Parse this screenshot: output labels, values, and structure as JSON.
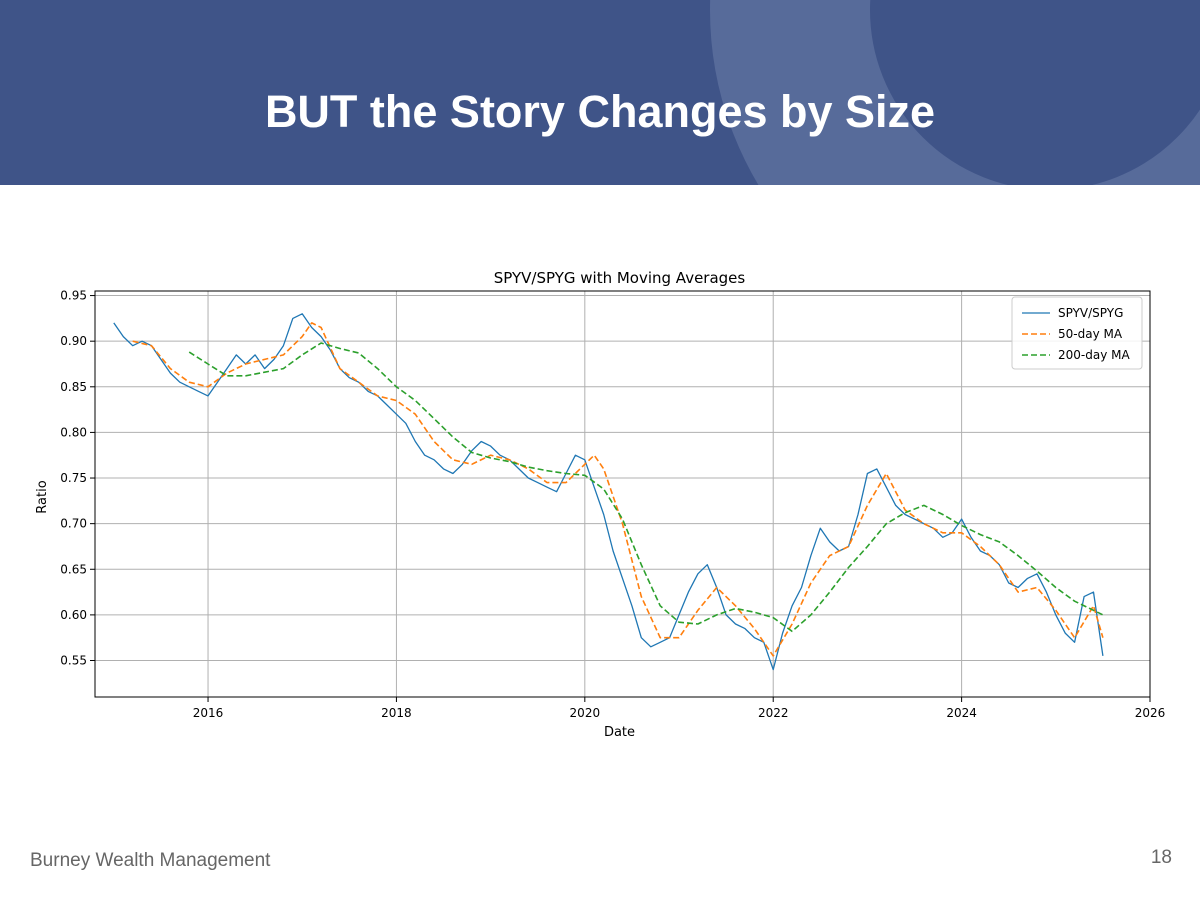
{
  "slide": {
    "title": "BUT the Story Changes by Size",
    "footer_left": "Burney Wealth Management",
    "page_number": "18",
    "header_color": "#3f5488"
  },
  "chart_data": {
    "type": "line",
    "title": "SPYV/SPYG with Moving Averages",
    "xlabel": "Date",
    "ylabel": "Ratio",
    "xlim": [
      2014.8,
      2026.0
    ],
    "ylim": [
      0.51,
      0.955
    ],
    "x_ticks": [
      2016,
      2018,
      2020,
      2022,
      2024,
      2026
    ],
    "x_tick_labels": [
      "2016",
      "2018",
      "2020",
      "2022",
      "2024",
      "2026"
    ],
    "y_ticks": [
      0.55,
      0.6,
      0.65,
      0.7,
      0.75,
      0.8,
      0.85,
      0.9,
      0.95
    ],
    "y_tick_labels": [
      "0.55",
      "0.60",
      "0.65",
      "0.70",
      "0.75",
      "0.80",
      "0.85",
      "0.90",
      "0.95"
    ],
    "grid": true,
    "legend_position": "top-right",
    "series": [
      {
        "name": "SPYV/SPYG",
        "color": "#1f77b4",
        "style": "solid",
        "x": [
          2015.0,
          2015.1,
          2015.2,
          2015.3,
          2015.4,
          2015.5,
          2015.6,
          2015.7,
          2015.8,
          2015.9,
          2016.0,
          2016.1,
          2016.2,
          2016.3,
          2016.4,
          2016.5,
          2016.6,
          2016.7,
          2016.8,
          2016.9,
          2017.0,
          2017.1,
          2017.2,
          2017.3,
          2017.4,
          2017.5,
          2017.6,
          2017.7,
          2017.8,
          2017.9,
          2018.0,
          2018.1,
          2018.2,
          2018.3,
          2018.4,
          2018.5,
          2018.6,
          2018.7,
          2018.8,
          2018.9,
          2019.0,
          2019.1,
          2019.2,
          2019.3,
          2019.4,
          2019.5,
          2019.6,
          2019.7,
          2019.8,
          2019.9,
          2020.0,
          2020.1,
          2020.2,
          2020.3,
          2020.4,
          2020.5,
          2020.6,
          2020.7,
          2020.8,
          2020.9,
          2021.0,
          2021.1,
          2021.2,
          2021.3,
          2021.4,
          2021.5,
          2021.6,
          2021.7,
          2021.8,
          2021.9,
          2022.0,
          2022.1,
          2022.2,
          2022.3,
          2022.4,
          2022.5,
          2022.6,
          2022.7,
          2022.8,
          2022.9,
          2023.0,
          2023.1,
          2023.2,
          2023.3,
          2023.4,
          2023.5,
          2023.6,
          2023.7,
          2023.8,
          2023.9,
          2024.0,
          2024.1,
          2024.2,
          2024.3,
          2024.4,
          2024.5,
          2024.6,
          2024.7,
          2024.8,
          2024.9,
          2025.0,
          2025.1,
          2025.2,
          2025.3,
          2025.4,
          2025.5
        ],
        "y": [
          0.92,
          0.905,
          0.895,
          0.9,
          0.895,
          0.88,
          0.865,
          0.855,
          0.85,
          0.845,
          0.84,
          0.855,
          0.87,
          0.885,
          0.875,
          0.885,
          0.87,
          0.88,
          0.895,
          0.925,
          0.93,
          0.915,
          0.905,
          0.89,
          0.87,
          0.86,
          0.855,
          0.845,
          0.84,
          0.83,
          0.82,
          0.81,
          0.79,
          0.775,
          0.77,
          0.76,
          0.755,
          0.765,
          0.78,
          0.79,
          0.785,
          0.775,
          0.77,
          0.76,
          0.75,
          0.745,
          0.74,
          0.735,
          0.755,
          0.775,
          0.77,
          0.74,
          0.71,
          0.67,
          0.64,
          0.61,
          0.575,
          0.565,
          0.57,
          0.575,
          0.6,
          0.625,
          0.645,
          0.655,
          0.63,
          0.6,
          0.59,
          0.585,
          0.575,
          0.57,
          0.54,
          0.58,
          0.61,
          0.63,
          0.665,
          0.695,
          0.68,
          0.67,
          0.675,
          0.71,
          0.755,
          0.76,
          0.74,
          0.72,
          0.71,
          0.705,
          0.7,
          0.695,
          0.685,
          0.69,
          0.705,
          0.685,
          0.67,
          0.665,
          0.655,
          0.635,
          0.63,
          0.64,
          0.645,
          0.625,
          0.6,
          0.58,
          0.57,
          0.62,
          0.625,
          0.555
        ]
      },
      {
        "name": "50-day MA",
        "color": "#ff7f0e",
        "style": "dashed",
        "x": [
          2015.2,
          2015.4,
          2015.6,
          2015.8,
          2016.0,
          2016.2,
          2016.4,
          2016.6,
          2016.8,
          2017.0,
          2017.1,
          2017.2,
          2017.4,
          2017.6,
          2017.8,
          2018.0,
          2018.2,
          2018.4,
          2018.6,
          2018.8,
          2019.0,
          2019.2,
          2019.4,
          2019.6,
          2019.8,
          2020.0,
          2020.1,
          2020.2,
          2020.4,
          2020.6,
          2020.8,
          2021.0,
          2021.2,
          2021.4,
          2021.6,
          2021.8,
          2022.0,
          2022.2,
          2022.4,
          2022.6,
          2022.8,
          2023.0,
          2023.2,
          2023.4,
          2023.6,
          2023.8,
          2024.0,
          2024.2,
          2024.4,
          2024.6,
          2024.8,
          2025.0,
          2025.2,
          2025.4,
          2025.5
        ],
        "y": [
          0.9,
          0.895,
          0.87,
          0.855,
          0.85,
          0.865,
          0.875,
          0.88,
          0.885,
          0.905,
          0.92,
          0.915,
          0.87,
          0.855,
          0.84,
          0.835,
          0.82,
          0.79,
          0.77,
          0.765,
          0.775,
          0.77,
          0.76,
          0.745,
          0.745,
          0.765,
          0.775,
          0.76,
          0.7,
          0.62,
          0.575,
          0.575,
          0.605,
          0.63,
          0.61,
          0.585,
          0.555,
          0.59,
          0.635,
          0.665,
          0.675,
          0.72,
          0.755,
          0.715,
          0.7,
          0.69,
          0.69,
          0.675,
          0.655,
          0.625,
          0.63,
          0.605,
          0.575,
          0.61,
          0.575
        ]
      },
      {
        "name": "200-day MA",
        "color": "#2ca02c",
        "style": "dashed",
        "x": [
          2015.8,
          2016.0,
          2016.2,
          2016.4,
          2016.6,
          2016.8,
          2017.0,
          2017.2,
          2017.4,
          2017.6,
          2017.8,
          2018.0,
          2018.2,
          2018.4,
          2018.6,
          2018.8,
          2019.0,
          2019.2,
          2019.4,
          2019.6,
          2019.8,
          2020.0,
          2020.2,
          2020.4,
          2020.6,
          2020.8,
          2021.0,
          2021.2,
          2021.4,
          2021.6,
          2021.8,
          2022.0,
          2022.2,
          2022.4,
          2022.6,
          2022.8,
          2023.0,
          2023.2,
          2023.4,
          2023.6,
          2023.8,
          2024.0,
          2024.2,
          2024.4,
          2024.6,
          2024.8,
          2025.0,
          2025.2,
          2025.4,
          2025.5
        ],
        "y": [
          0.888,
          0.875,
          0.862,
          0.862,
          0.866,
          0.87,
          0.885,
          0.898,
          0.892,
          0.887,
          0.87,
          0.85,
          0.835,
          0.815,
          0.795,
          0.778,
          0.772,
          0.768,
          0.762,
          0.758,
          0.755,
          0.753,
          0.738,
          0.705,
          0.655,
          0.61,
          0.592,
          0.59,
          0.6,
          0.607,
          0.603,
          0.597,
          0.582,
          0.6,
          0.625,
          0.652,
          0.675,
          0.7,
          0.712,
          0.72,
          0.71,
          0.698,
          0.688,
          0.68,
          0.665,
          0.648,
          0.63,
          0.615,
          0.605,
          0.6
        ]
      }
    ]
  }
}
